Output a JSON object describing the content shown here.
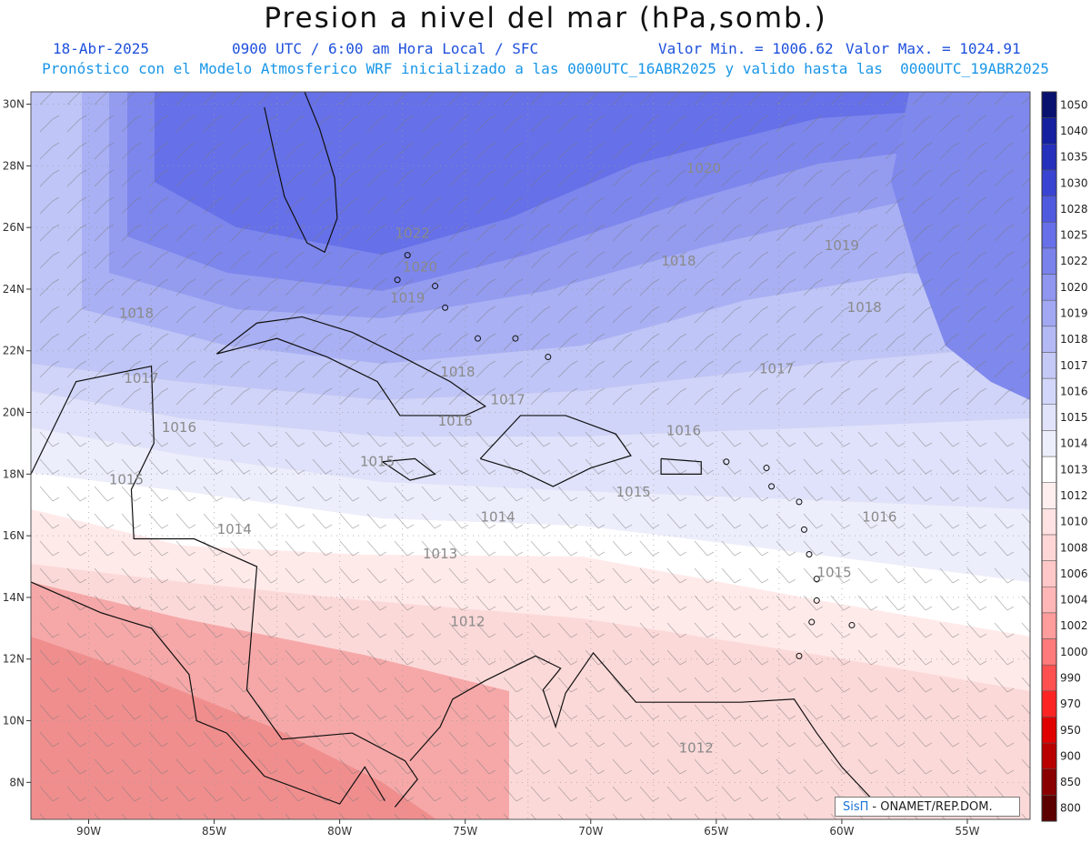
{
  "header": {
    "title": "Presion a nivel del mar (hPa,somb.)",
    "date": "18-Abr-2025",
    "time": "0900 UTC / 6:00 am Hora Local / SFC",
    "min_value": "Valor Min. = 1006.62",
    "max_value": "Valor Max. = 1024.91",
    "forecast_note": "Pronóstico con el Modelo Atmosferico WRF inicializado a las 0000UTC_16ABR2025 y valido hasta las  0000UTC_19ABR2025"
  },
  "chart_data": {
    "type": "heatmap",
    "variable": "Sea level pressure (hPa), shaded",
    "lon_range": [
      -92.3,
      -52.5
    ],
    "lat_range": [
      6.8,
      30.4
    ],
    "lon_ticks": [
      "90W",
      "85W",
      "80W",
      "75W",
      "70W",
      "65W",
      "60W",
      "55W"
    ],
    "lat_ticks": [
      "30N",
      "28N",
      "26N",
      "24N",
      "22N",
      "20N",
      "18N",
      "16N",
      "14N",
      "12N",
      "10N",
      "8N"
    ],
    "contour_labels": [
      {
        "text": "1022",
        "lon": -77.1,
        "lat": 25.8
      },
      {
        "text": "1020",
        "lon": -65.5,
        "lat": 27.9
      },
      {
        "text": "1020",
        "lon": -76.8,
        "lat": 24.7
      },
      {
        "text": "1019",
        "lon": -60.0,
        "lat": 25.4
      },
      {
        "text": "1019",
        "lon": -77.3,
        "lat": 23.7
      },
      {
        "text": "1018",
        "lon": -66.5,
        "lat": 24.9
      },
      {
        "text": "1018",
        "lon": -88.1,
        "lat": 23.2
      },
      {
        "text": "1018",
        "lon": -75.3,
        "lat": 21.3
      },
      {
        "text": "1018",
        "lon": -59.1,
        "lat": 23.4
      },
      {
        "text": "1017",
        "lon": -87.9,
        "lat": 21.1
      },
      {
        "text": "1017",
        "lon": -73.3,
        "lat": 20.4
      },
      {
        "text": "1017",
        "lon": -62.6,
        "lat": 21.4
      },
      {
        "text": "1016",
        "lon": -86.4,
        "lat": 19.5
      },
      {
        "text": "1016",
        "lon": -75.4,
        "lat": 19.7
      },
      {
        "text": "1016",
        "lon": -66.3,
        "lat": 19.4
      },
      {
        "text": "1016",
        "lon": -58.5,
        "lat": 16.6
      },
      {
        "text": "1015",
        "lon": -88.5,
        "lat": 17.8
      },
      {
        "text": "1015",
        "lon": -78.5,
        "lat": 18.4
      },
      {
        "text": "1015",
        "lon": -68.3,
        "lat": 17.4
      },
      {
        "text": "1015",
        "lon": -60.3,
        "lat": 14.8
      },
      {
        "text": "1014",
        "lon": -84.2,
        "lat": 16.2
      },
      {
        "text": "1014",
        "lon": -73.7,
        "lat": 16.6
      },
      {
        "text": "1013",
        "lon": -76.0,
        "lat": 15.4
      },
      {
        "text": "1012",
        "lon": -74.9,
        "lat": 13.2
      },
      {
        "text": "1012",
        "lon": -65.8,
        "lat": 9.1
      }
    ],
    "colorbar": {
      "levels": [
        "800",
        "850",
        "900",
        "950",
        "970",
        "990",
        "1000",
        "1002",
        "1004",
        "1006",
        "1008",
        "1010",
        "1012",
        "1013",
        "1014",
        "1015",
        "1016",
        "1017",
        "1018",
        "1019",
        "1020",
        "1022",
        "1025",
        "1028",
        "1030",
        "1035",
        "1040",
        "1050"
      ],
      "colors": [
        "#5c0000",
        "#8a0000",
        "#b80000",
        "#e00000",
        "#ff2424",
        "#ff5050",
        "#ff7a7a",
        "#ff9c9c",
        "#ffb6b6",
        "#ffc8c8",
        "#ffd6d6",
        "#ffe2e2",
        "#ffeeee",
        "#ffffff",
        "#eceefc",
        "#e0e3fa",
        "#d2d6f8",
        "#c4c9f6",
        "#b3b9f4",
        "#a2a9f2",
        "#8e96ef",
        "#7a82ec",
        "#6770e8",
        "#505adf",
        "#3a44d2",
        "#2530bc",
        "#1420a0",
        "#0a1270"
      ]
    }
  },
  "credit": {
    "brand": "SisΠ",
    "text": "- ONAMET/REP.DOM."
  },
  "colors": {
    "title": "#111111",
    "header_blue": "#1e50dc",
    "note_blue": "#1896e8",
    "pressure_high": "#3a44e0",
    "pressure_low": "#f48c8c"
  }
}
